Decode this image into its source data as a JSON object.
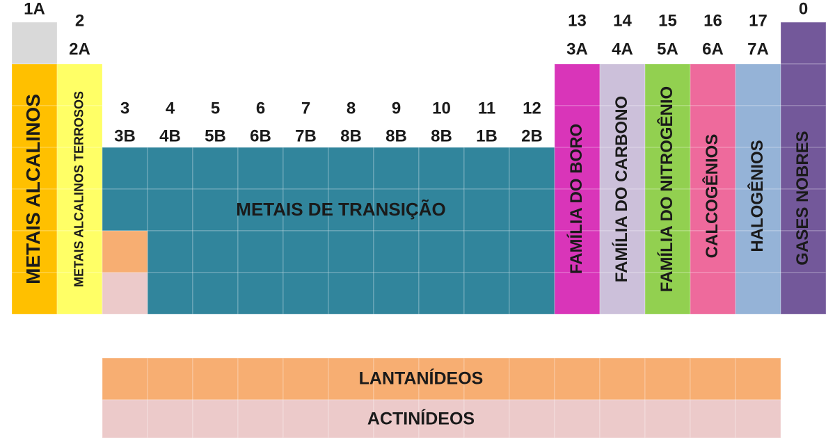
{
  "groups": [
    {
      "labels": [
        "1A"
      ]
    },
    {
      "labels": [
        "2",
        "2A"
      ]
    },
    {
      "labels": [
        "3",
        "3B"
      ]
    },
    {
      "labels": [
        "4",
        "4B"
      ]
    },
    {
      "labels": [
        "5",
        "5B"
      ]
    },
    {
      "labels": [
        "6",
        "6B"
      ]
    },
    {
      "labels": [
        "7",
        "7B"
      ]
    },
    {
      "labels": [
        "8",
        "8B"
      ]
    },
    {
      "labels": [
        "9",
        "8B"
      ]
    },
    {
      "labels": [
        "10",
        "8B"
      ]
    },
    {
      "labels": [
        "11",
        "1B"
      ]
    },
    {
      "labels": [
        "12",
        "2B"
      ]
    },
    {
      "labels": [
        "13",
        "3A"
      ]
    },
    {
      "labels": [
        "14",
        "4A"
      ]
    },
    {
      "labels": [
        "15",
        "5A"
      ]
    },
    {
      "labels": [
        "16",
        "6A"
      ]
    },
    {
      "labels": [
        "17",
        "7A"
      ]
    },
    {
      "labels": [
        "0"
      ]
    }
  ],
  "families": [
    "METAIS ALCALINOS",
    "METAIS ALCALINOS TERROSOS",
    "METAIS DE TRANSIÇÃO",
    "FAMÍLIA DO BORO",
    "FAMÍLIA DO CARBONO",
    "FAMÍLIA DO NITROGÊNIO",
    "CALCOGÊNIOS",
    "HALOGÊNIOS",
    "GASES NOBRES",
    "LANTANÍDEOS",
    "ACTINÍDEOS"
  ]
}
